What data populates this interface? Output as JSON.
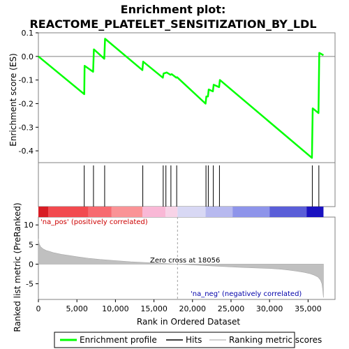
{
  "chart_data": {
    "type": "line",
    "title_line1": "Enrichment plot:",
    "title_line2": "REACTOME_PLATELET_SENSITIZATION_BY_LDL",
    "es_panel": {
      "ylabel": "Enrichment score (ES)",
      "ylim": [
        -0.45,
        0.1
      ],
      "yticks": [
        0.1,
        0.0,
        -0.1,
        -0.2,
        -0.3,
        -0.4
      ],
      "ytick_labels": [
        "0.1",
        "0.0",
        "-0.1",
        "-0.2",
        "-0.3",
        "-0.4"
      ],
      "line_color": "#00ff00",
      "series": [
        {
          "x": [
            0,
            5950,
            6000,
            7100,
            7200,
            8550,
            8650,
            13500,
            13600,
            16150,
            16250,
            16500,
            16650,
            17150,
            17300,
            17900,
            18000,
            21700,
            21800,
            22000,
            22100,
            22650,
            22750,
            23450,
            23550,
            35500,
            35600,
            36350,
            36450,
            37000
          ],
          "y": [
            0.0,
            -0.16,
            -0.04,
            -0.065,
            0.03,
            -0.01,
            0.075,
            -0.058,
            -0.022,
            -0.09,
            -0.072,
            -0.07,
            -0.068,
            -0.078,
            -0.075,
            -0.09,
            -0.088,
            -0.2,
            -0.17,
            -0.17,
            -0.14,
            -0.148,
            -0.12,
            -0.13,
            -0.1,
            -0.43,
            -0.22,
            -0.24,
            0.015,
            0.005
          ]
        }
      ]
    },
    "hits_panel": {
      "hit_positions": [
        5950,
        7150,
        8600,
        13550,
        16200,
        16550,
        17200,
        17950,
        21750,
        22050,
        22700,
        23500,
        35550,
        36400
      ]
    },
    "rank_panel": {
      "ylabel": "Ranked list metric (PreRanked)",
      "xlabel": "Rank in Ordered Dataset",
      "ylim": [
        -9,
        12
      ],
      "yticks": [
        10,
        5,
        0,
        -5
      ],
      "ytick_labels": [
        "10",
        "5",
        "0",
        "-5"
      ],
      "xlim": [
        0,
        38500
      ],
      "xticks": [
        0,
        5000,
        10000,
        15000,
        20000,
        25000,
        30000,
        35000
      ],
      "xtick_labels": [
        "0",
        "5,000",
        "10,000",
        "15,000",
        "20,000",
        "25,000",
        "30,000",
        "35,000"
      ],
      "zero_cross_rank": 18056,
      "zero_cross_label": "Zero cross at 18056",
      "pos_label": "'na_pos' (positively correlated)",
      "neg_label": "'na_neg' (negatively correlated)",
      "pos_label_color": "#cc0000",
      "neg_label_color": "#0000aa",
      "area_color": "#c0c0c0",
      "metric_curve": {
        "rank": [
          0,
          100,
          300,
          600,
          1000,
          1500,
          2000,
          3000,
          4000,
          5000,
          6500,
          8000,
          10000,
          12000,
          14000,
          16000,
          18056,
          20000,
          22000,
          24000,
          26000,
          28000,
          30000,
          31500,
          32500,
          33500,
          34500,
          35200,
          35800,
          36300,
          36600,
          36800,
          36900,
          37000
        ],
        "value": [
          6.5,
          5.2,
          4.4,
          3.9,
          3.5,
          3.2,
          2.9,
          2.5,
          2.2,
          1.9,
          1.5,
          1.2,
          0.9,
          0.6,
          0.4,
          0.2,
          0.0,
          -0.2,
          -0.4,
          -0.6,
          -0.8,
          -0.95,
          -1.1,
          -1.3,
          -1.5,
          -1.8,
          -2.1,
          -2.4,
          -2.8,
          -3.3,
          -4.0,
          -5.0,
          -6.5,
          -8.5
        ]
      }
    },
    "colorbar": {
      "segments": [
        {
          "from": 0,
          "to": 1300,
          "color": "#d81c24"
        },
        {
          "from": 1300,
          "to": 6500,
          "color": "#f24a4f"
        },
        {
          "from": 6500,
          "to": 9500,
          "color": "#f76a70"
        },
        {
          "from": 9500,
          "to": 13500,
          "color": "#fa9396"
        },
        {
          "from": 13500,
          "to": 16500,
          "color": "#f9b8d6"
        },
        {
          "from": 16500,
          "to": 18056,
          "color": "#f7d3e7"
        },
        {
          "from": 18056,
          "to": 21700,
          "color": "#d8d8f4"
        },
        {
          "from": 21700,
          "to": 25200,
          "color": "#b7b9ef"
        },
        {
          "from": 25200,
          "to": 30000,
          "color": "#8e94ea"
        },
        {
          "from": 30000,
          "to": 34800,
          "color": "#5a5ed8"
        },
        {
          "from": 34800,
          "to": 37000,
          "color": "#1a12c0"
        }
      ]
    },
    "legend": {
      "items": [
        {
          "label": "Enrichment profile",
          "color": "#00ff00",
          "kind": "thick-line"
        },
        {
          "label": "Hits",
          "color": "#000000",
          "kind": "thin-line"
        },
        {
          "label": "Ranking metric scores",
          "color": "#c0c0c0",
          "kind": "thin-line"
        }
      ]
    }
  }
}
